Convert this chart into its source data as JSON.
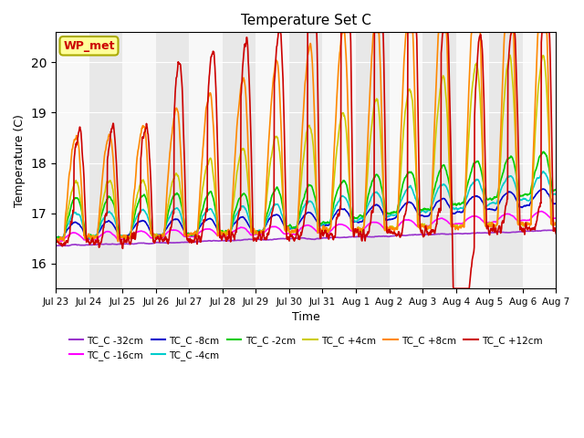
{
  "title": "Temperature Set C",
  "xlabel": "Time",
  "ylabel": "Temperature (C)",
  "ylim": [
    15.5,
    20.6
  ],
  "annotation": "WP_met",
  "annotation_color": "#cc0000",
  "annotation_bg": "#ffff99",
  "annotation_edge": "#aaaa00",
  "series": [
    {
      "label": "TC_C -32cm",
      "color": "#9933cc",
      "lw": 1.2
    },
    {
      "label": "TC_C -16cm",
      "color": "#ff00ff",
      "lw": 1.2
    },
    {
      "label": "TC_C -8cm",
      "color": "#0000cc",
      "lw": 1.2
    },
    {
      "label": "TC_C -4cm",
      "color": "#00cccc",
      "lw": 1.2
    },
    {
      "label": "TC_C -2cm",
      "color": "#00cc00",
      "lw": 1.2
    },
    {
      "label": "TC_C +4cm",
      "color": "#cccc00",
      "lw": 1.2
    },
    {
      "label": "TC_C +8cm",
      "color": "#ff8800",
      "lw": 1.2
    },
    {
      "label": "TC_C +12cm",
      "color": "#cc0000",
      "lw": 1.2
    }
  ],
  "xtick_labels": [
    "Jul 23",
    "Jul 24",
    "Jul 25",
    "Jul 26",
    "Jul 27",
    "Jul 28",
    "Jul 29",
    "Jul 30",
    "Jul 31",
    "Aug 1",
    "Aug 2",
    "Aug 3",
    "Aug 4",
    "Aug 5",
    "Aug 6",
    "Aug 7"
  ],
  "bg_color": "#e8e8e8",
  "stripe_color": "#f8f8f8"
}
